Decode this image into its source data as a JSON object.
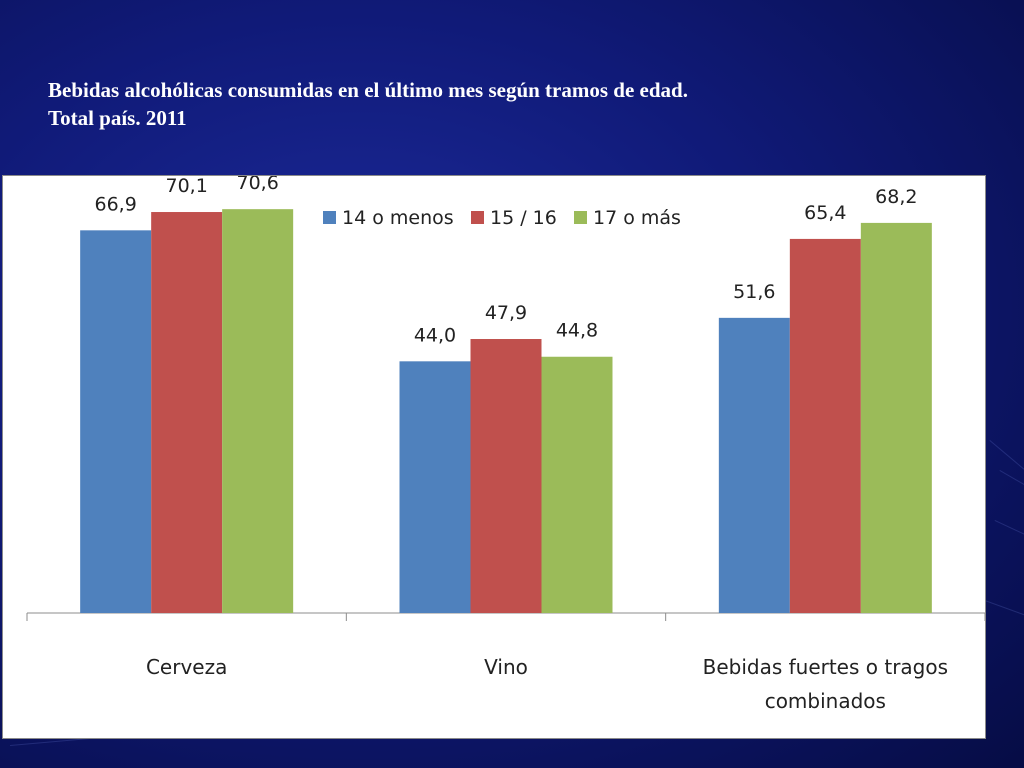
{
  "slide": {
    "title_line1": "Bebidas alcohólicas consumidas en el último mes según tramos de edad.",
    "title_line2": "Total país. 2011"
  },
  "chart_data": {
    "type": "bar",
    "categories": [
      [
        "Cerveza"
      ],
      [
        "Vino"
      ],
      [
        "Bebidas fuertes o tragos",
        "combinados"
      ]
    ],
    "series": [
      {
        "name": "14 o menos",
        "color": "#4f81bd",
        "values": [
          66.9,
          44.0,
          51.6
        ],
        "labels": [
          "66,9",
          "44,0",
          "51,6"
        ]
      },
      {
        "name": "15 / 16",
        "color": "#c0504d",
        "values": [
          70.1,
          47.9,
          65.4
        ],
        "labels": [
          "70,1",
          "47,9",
          "65,4"
        ]
      },
      {
        "name": "17 o más",
        "color": "#9bbb59",
        "values": [
          70.6,
          44.8,
          68.2
        ],
        "labels": [
          "70,6",
          "44,8",
          "68,2"
        ]
      }
    ],
    "ylim": [
      0,
      80
    ],
    "legend_position": "top-center",
    "grid": false
  }
}
